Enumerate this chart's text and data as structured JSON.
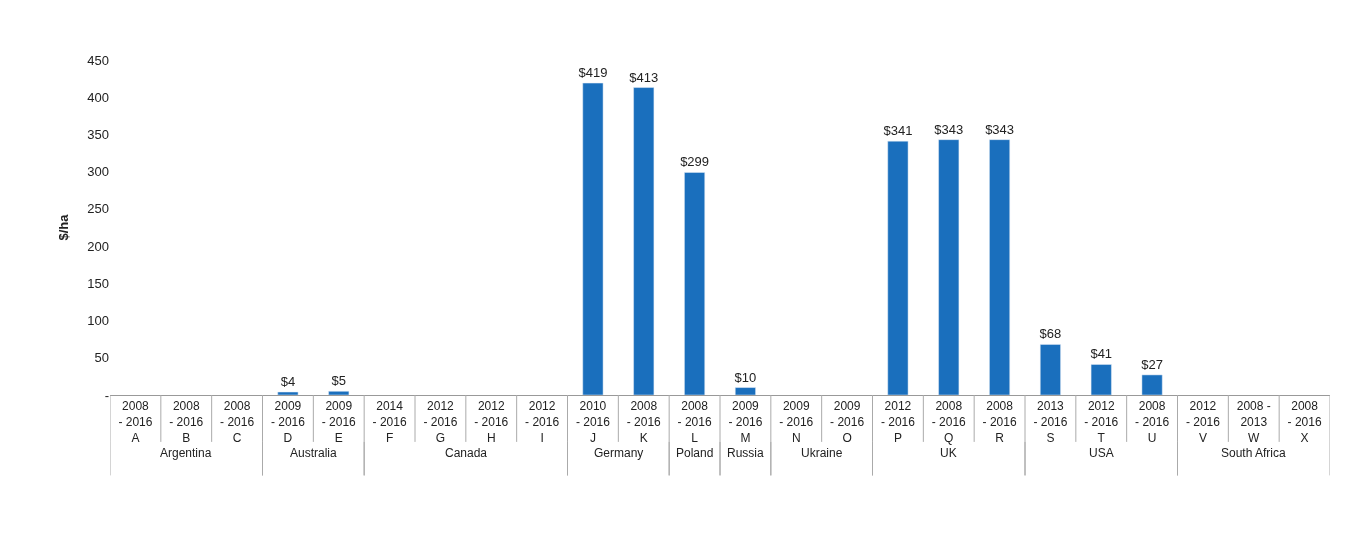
{
  "chart_data": {
    "type": "bar",
    "ylabel": "$/ha",
    "categories": [
      "2008\n- 2016\nA",
      "2008\n- 2016\nB",
      "2008\n- 2016\nC",
      "2009\n- 2016\nD",
      "2009\n- 2016\nE",
      "2014\n- 2016\nF",
      "2012\n- 2016\nG",
      "2012\n- 2016\nH",
      "2012\n- 2016\nI",
      "2010\n- 2016\nJ",
      "2008\n- 2016\nK",
      "2008\n- 2016\nL",
      "2009\n- 2016\nM",
      "2009\n- 2016\nN",
      "2009\n- 2016\nO",
      "2012\n- 2016\nP",
      "2008\n- 2016\nQ",
      "2008\n- 2016\nR",
      "2013\n- 2016\nS",
      "2012\n- 2016\nT",
      "2008\n- 2016\nU",
      "2012\n- 2016\nV",
      "2008 -\n2013\nW",
      "2008\n- 2016\nX"
    ],
    "values": [
      null,
      null,
      null,
      4,
      5,
      null,
      null,
      null,
      null,
      419,
      413,
      299,
      10,
      null,
      null,
      341,
      343,
      343,
      68,
      41,
      27,
      null,
      null,
      null
    ],
    "value_labels": [
      null,
      null,
      null,
      "$4",
      "$5",
      null,
      null,
      null,
      null,
      "$419",
      "$413",
      "$299",
      "$10",
      null,
      null,
      "$341",
      "$343",
      "$343",
      "$68",
      "$41",
      "$27",
      null,
      null,
      null
    ],
    "color": "#1a6fbd",
    "ylim": [
      0,
      450
    ],
    "yticks": [
      {
        "value": 0,
        "label": "-"
      },
      50,
      100,
      150,
      200,
      250,
      300,
      350,
      400,
      450
    ],
    "annotations": [
      "Argentina",
      "Australia",
      "Canada",
      "Germany",
      "Poland",
      "Russia",
      "Ukraine",
      "UK",
      "USA",
      "South Africa"
    ]
  }
}
